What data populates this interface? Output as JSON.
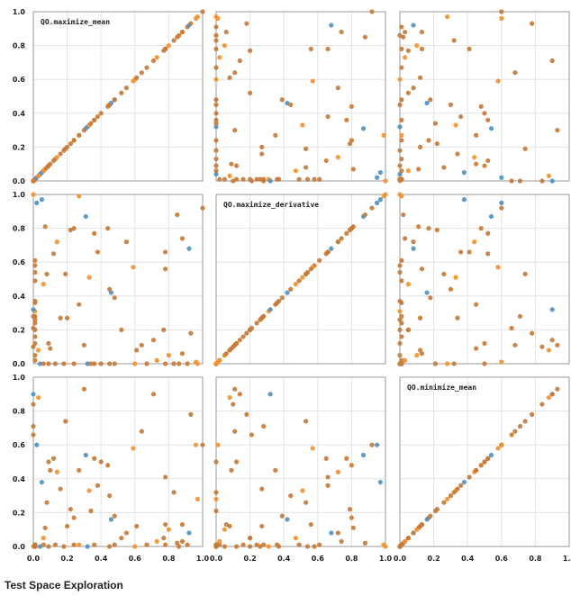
{
  "caption": "Test Space Exploration",
  "chart_data": {
    "type": "scatter",
    "layout": "scatter-matrix",
    "grid": true,
    "dimensions": [
      "QO.maximize_mean",
      "QO.maximize_derivative",
      "QO.minimize_mean"
    ],
    "axis_range": [
      0,
      1
    ],
    "ticks": [
      "0.0",
      "0.2",
      "0.4",
      "0.6",
      "0.8",
      "1.0"
    ],
    "series_colors": {
      "blue": "#4f93c4",
      "orange": "#f5912e",
      "mixed": "#c77b3a"
    },
    "points": [
      {
        "a": 0.0,
        "b": 1.0,
        "c": 0.0,
        "s": "orange"
      },
      {
        "a": 0.27,
        "b": 0.99,
        "c": 0.01,
        "s": "orange"
      },
      {
        "a": 0.01,
        "b": 0.61,
        "c": 0.01,
        "s": "mixed"
      },
      {
        "a": 0.01,
        "b": 0.58,
        "c": 0.0,
        "s": "mixed"
      },
      {
        "a": 0.01,
        "b": 0.54,
        "c": 0.0,
        "s": "mixed"
      },
      {
        "a": 0.01,
        "b": 0.49,
        "c": 0.01,
        "s": "mixed"
      },
      {
        "a": 0.01,
        "b": 0.37,
        "c": 0.0,
        "s": "mixed"
      },
      {
        "a": 0.01,
        "b": 0.36,
        "c": 0.01,
        "s": "mixed"
      },
      {
        "a": 0.01,
        "b": 0.31,
        "c": 0.0,
        "s": "orange"
      },
      {
        "a": 0.01,
        "b": 0.28,
        "c": 0.01,
        "s": "mixed"
      },
      {
        "a": 0.01,
        "b": 0.26,
        "c": 0.0,
        "s": "mixed"
      },
      {
        "a": 0.01,
        "b": 0.24,
        "c": 0.01,
        "s": "mixed"
      },
      {
        "a": 0.01,
        "b": 0.2,
        "c": 0.0,
        "s": "mixed"
      },
      {
        "a": 0.01,
        "b": 0.16,
        "c": 0.01,
        "s": "mixed"
      },
      {
        "a": 0.01,
        "b": 0.12,
        "c": 0.0,
        "s": "mixed"
      },
      {
        "a": 0.01,
        "b": 0.05,
        "c": 0.0,
        "s": "mixed"
      },
      {
        "a": 0.01,
        "b": 0.02,
        "c": 0.01,
        "s": "mixed"
      },
      {
        "a": 0.04,
        "b": 0.0,
        "c": 0.0,
        "s": "blue"
      },
      {
        "a": 0.06,
        "b": 0.0,
        "c": 0.01,
        "s": "mixed"
      },
      {
        "a": 0.09,
        "b": 0.0,
        "c": 0.0,
        "s": "mixed"
      },
      {
        "a": 0.13,
        "b": 0.0,
        "c": 0.01,
        "s": "mixed"
      },
      {
        "a": 0.18,
        "b": 0.0,
        "c": 0.0,
        "s": "mixed"
      },
      {
        "a": 0.24,
        "b": 0.0,
        "c": 0.01,
        "s": "mixed"
      },
      {
        "a": 0.32,
        "b": 0.0,
        "c": 0.0,
        "s": "blue"
      },
      {
        "a": 0.36,
        "b": 0.0,
        "c": 0.01,
        "s": "mixed"
      },
      {
        "a": 0.45,
        "b": 0.0,
        "c": 0.0,
        "s": "mixed"
      },
      {
        "a": 0.48,
        "b": 0.0,
        "c": 0.01,
        "s": "mixed"
      },
      {
        "a": 0.6,
        "b": 0.0,
        "c": 0.0,
        "s": "orange"
      },
      {
        "a": 0.78,
        "b": 0.0,
        "c": 0.01,
        "s": "mixed"
      },
      {
        "a": 0.86,
        "b": 0.0,
        "c": 0.0,
        "s": "mixed"
      },
      {
        "a": 0.91,
        "b": 0.0,
        "c": 0.01,
        "s": "mixed"
      },
      {
        "a": 0.02,
        "b": 0.95,
        "c": 0.6,
        "s": "blue"
      },
      {
        "a": 0.05,
        "b": 0.97,
        "c": 0.38,
        "s": "blue"
      },
      {
        "a": 0.07,
        "b": 0.81,
        "c": 0.11,
        "s": "mixed"
      },
      {
        "a": 0.12,
        "b": 0.65,
        "c": 0.52,
        "s": "mixed"
      },
      {
        "a": 0.14,
        "b": 0.72,
        "c": 0.44,
        "s": "orange"
      },
      {
        "a": 0.22,
        "b": 0.79,
        "c": 0.22,
        "s": "mixed"
      },
      {
        "a": 0.24,
        "b": 0.8,
        "c": 0.17,
        "s": "mixed"
      },
      {
        "a": 0.31,
        "b": 0.87,
        "c": 0.54,
        "s": "blue"
      },
      {
        "a": 0.33,
        "b": 0.51,
        "c": 0.33,
        "s": "orange"
      },
      {
        "a": 0.38,
        "b": 0.66,
        "c": 0.36,
        "s": "mixed"
      },
      {
        "a": 0.44,
        "b": 0.8,
        "c": 0.48,
        "s": "mixed"
      },
      {
        "a": 0.46,
        "b": 0.42,
        "c": 0.16,
        "s": "blue"
      },
      {
        "a": 0.45,
        "b": 0.44,
        "c": 0.3,
        "s": "mixed"
      },
      {
        "a": 0.48,
        "b": 0.39,
        "c": 0.18,
        "s": "mixed"
      },
      {
        "a": 0.59,
        "b": 0.57,
        "c": 0.58,
        "s": "orange"
      },
      {
        "a": 0.67,
        "b": 0.0,
        "c": 0.01,
        "s": "mixed"
      },
      {
        "a": 0.78,
        "b": 0.66,
        "c": 0.41,
        "s": "mixed"
      },
      {
        "a": 0.78,
        "b": 0.56,
        "c": 0.13,
        "s": "mixed"
      },
      {
        "a": 0.85,
        "b": 0.88,
        "c": 0.02,
        "s": "mixed"
      },
      {
        "a": 0.88,
        "b": 0.74,
        "c": 0.03,
        "s": "mixed"
      },
      {
        "a": 0.92,
        "b": 0.68,
        "c": 0.08,
        "s": "blue"
      },
      {
        "a": 1.0,
        "b": 0.92,
        "c": 0.6,
        "s": "mixed"
      },
      {
        "a": 0.0,
        "b": 0.32,
        "c": 0.9,
        "s": "blue"
      },
      {
        "a": 0.0,
        "b": 0.28,
        "c": 0.71,
        "s": "mixed"
      },
      {
        "a": 0.0,
        "b": 0.21,
        "c": 0.66,
        "s": "mixed"
      },
      {
        "a": 0.0,
        "b": 0.1,
        "c": 0.84,
        "s": "mixed"
      },
      {
        "a": 0.03,
        "b": 0.08,
        "c": 0.88,
        "s": "orange"
      },
      {
        "a": 0.06,
        "b": 0.47,
        "c": 0.05,
        "s": "orange"
      },
      {
        "a": 0.08,
        "b": 0.53,
        "c": 0.26,
        "s": "mixed"
      },
      {
        "a": 0.09,
        "b": 0.12,
        "c": 0.5,
        "s": "mixed"
      },
      {
        "a": 0.1,
        "b": 0.09,
        "c": 0.45,
        "s": "mixed"
      },
      {
        "a": 0.16,
        "b": 0.27,
        "c": 0.34,
        "s": "mixed"
      },
      {
        "a": 0.19,
        "b": 0.53,
        "c": 0.74,
        "s": "mixed"
      },
      {
        "a": 0.2,
        "b": 0.27,
        "c": 0.12,
        "s": "mixed"
      },
      {
        "a": 0.27,
        "b": 0.35,
        "c": 0.45,
        "s": "mixed"
      },
      {
        "a": 0.3,
        "b": 0.11,
        "c": 0.93,
        "s": "mixed"
      },
      {
        "a": 0.34,
        "b": 0.0,
        "c": 0.21,
        "s": "mixed"
      },
      {
        "a": 0.36,
        "b": 0.77,
        "c": 0.52,
        "s": "mixed"
      },
      {
        "a": 0.4,
        "b": 0.0,
        "c": 0.5,
        "s": "mixed"
      },
      {
        "a": 0.52,
        "b": 0.2,
        "c": 0.05,
        "s": "mixed"
      },
      {
        "a": 0.55,
        "b": 0.72,
        "c": 0.08,
        "s": "mixed"
      },
      {
        "a": 0.61,
        "b": 0.08,
        "c": 0.12,
        "s": "mixed"
      },
      {
        "a": 0.64,
        "b": 0.11,
        "c": 0.68,
        "s": "mixed"
      },
      {
        "a": 0.71,
        "b": 0.14,
        "c": 0.9,
        "s": "mixed"
      },
      {
        "a": 0.73,
        "b": 0.02,
        "c": 0.03,
        "s": "orange"
      },
      {
        "a": 0.77,
        "b": 0.2,
        "c": 0.05,
        "s": "mixed"
      },
      {
        "a": 0.8,
        "b": 0.05,
        "c": 0.1,
        "s": "orange"
      },
      {
        "a": 0.83,
        "b": 0.0,
        "c": 0.32,
        "s": "mixed"
      },
      {
        "a": 0.88,
        "b": 0.06,
        "c": 0.13,
        "s": "mixed"
      },
      {
        "a": 0.93,
        "b": 0.18,
        "c": 0.78,
        "s": "mixed"
      },
      {
        "a": 0.96,
        "b": 0.01,
        "c": 0.6,
        "s": "orange"
      },
      {
        "a": 0.97,
        "b": 0.0,
        "c": 0.28,
        "s": "orange"
      }
    ]
  }
}
